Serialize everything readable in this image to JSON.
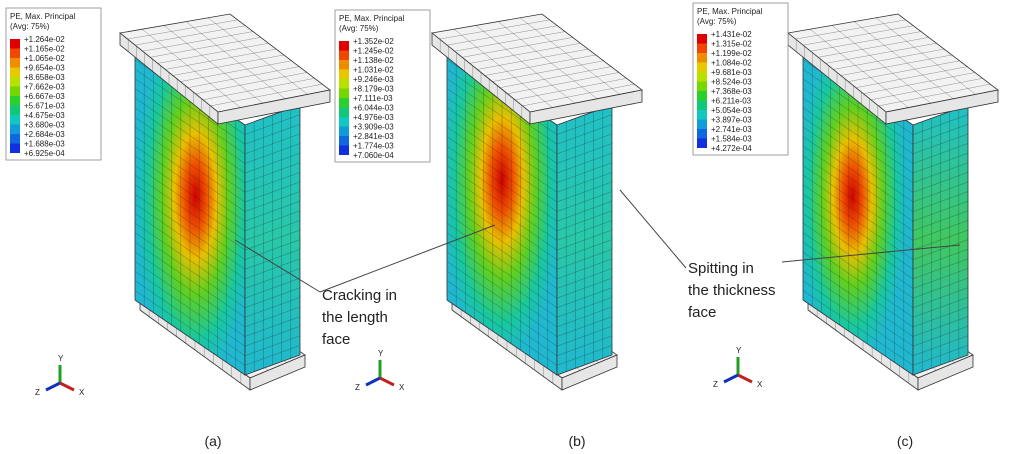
{
  "panels": [
    {
      "legend": {
        "title": "PE, Max. Principal",
        "subtitle": "(Avg: 75%)",
        "values": [
          "+1.264e-02",
          "+1.165e-02",
          "+1.065e-02",
          "+9.654e-03",
          "+8.658e-03",
          "+7.662e-03",
          "+6.667e-03",
          "+5.671e-03",
          "+4.675e-03",
          "+3.680e-03",
          "+2.684e-03",
          "+1.688e-03",
          "+6.925e-04"
        ]
      },
      "axes": [
        "Y",
        "Z",
        "X"
      ],
      "caption": "(a)"
    },
    {
      "legend": {
        "title": "PE, Max. Principal",
        "subtitle": "(Avg: 75%)",
        "values": [
          "+1.352e-02",
          "+1.245e-02",
          "+1.138e-02",
          "+1.031e-02",
          "+9.246e-03",
          "+8.179e-03",
          "+7.111e-03",
          "+6.044e-03",
          "+4.976e-03",
          "+3.909e-03",
          "+2.841e-03",
          "+1.774e-03",
          "+7.060e-04"
        ]
      },
      "axes": [
        "Y",
        "Z",
        "X"
      ],
      "caption": "(b)"
    },
    {
      "legend": {
        "title": "PE, Max. Principal",
        "subtitle": "(Avg: 75%)",
        "values": [
          "+1.431e-02",
          "+1.315e-02",
          "+1.199e-02",
          "+1.084e-02",
          "+9.681e-03",
          "+8.524e-03",
          "+7.368e-03",
          "+6.211e-03",
          "+5.054e-03",
          "+3.897e-03",
          "+2.741e-03",
          "+1.584e-03",
          "+4.272e-04"
        ]
      },
      "axes": [
        "Y",
        "Z",
        "X"
      ],
      "caption": "(c)"
    }
  ],
  "annotations": [
    {
      "lines": [
        "Cracking in",
        "the length",
        "face"
      ]
    },
    {
      "lines": [
        "Spitting in",
        "the thickness",
        "face"
      ]
    }
  ]
}
